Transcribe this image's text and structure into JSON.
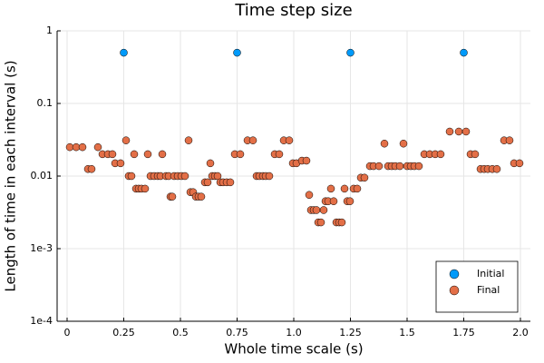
{
  "chart_data": {
    "type": "scatter",
    "title": "Time step size",
    "x_label": "Whole time scale (s)",
    "y_label": "Length of time in each interval (s)",
    "xlim": [
      -0.044,
      2.044
    ],
    "ylim": [
      0.0001,
      1
    ],
    "log_y": true,
    "grid": true,
    "legend": "bottom right",
    "xticks": [
      0,
      0.25,
      0.5,
      0.75,
      {
        "value": 1,
        "label": "1.0"
      },
      1.25,
      1.5,
      1.75,
      {
        "value": 2,
        "label": "2.0"
      }
    ],
    "yticks": [
      1,
      0.1,
      0.01,
      {
        "value": 0.001,
        "label": "1e-3"
      },
      {
        "value": 0.0001,
        "label": "1e-4"
      }
    ],
    "series": [
      {
        "name": "Initial",
        "color": "#009afa",
        "x": [
          0.25,
          0.75,
          1.25,
          1.75
        ],
        "values": [
          0.5,
          0.5,
          0.5,
          0.5
        ]
      },
      {
        "name": "Final",
        "color": "#e36f47",
        "x": [
          0.012,
          0.04,
          0.068,
          0.092,
          0.108,
          0.136,
          0.156,
          0.18,
          0.2,
          0.212,
          0.236,
          0.26,
          0.272,
          0.284,
          0.296,
          0.304,
          0.316,
          0.328,
          0.344,
          0.356,
          0.368,
          0.384,
          0.4,
          0.412,
          0.42,
          0.436,
          0.448,
          0.456,
          0.464,
          0.472,
          0.488,
          0.504,
          0.52,
          0.536,
          0.544,
          0.556,
          0.568,
          0.58,
          0.592,
          0.608,
          0.62,
          0.632,
          0.64,
          0.652,
          0.664,
          0.676,
          0.688,
          0.704,
          0.72,
          0.74,
          0.764,
          0.796,
          0.82,
          0.836,
          0.848,
          0.864,
          0.876,
          0.892,
          0.916,
          0.936,
          0.956,
          0.98,
          0.996,
          1.012,
          1.036,
          1.056,
          1.068,
          1.076,
          1.088,
          1.1,
          1.108,
          1.12,
          1.132,
          1.14,
          1.152,
          1.164,
          1.176,
          1.188,
          1.2,
          1.212,
          1.224,
          1.236,
          1.248,
          1.264,
          1.28,
          1.296,
          1.312,
          1.336,
          1.352,
          1.376,
          1.4,
          1.416,
          1.432,
          1.448,
          1.468,
          1.484,
          1.5,
          1.516,
          1.532,
          1.552,
          1.576,
          1.6,
          1.624,
          1.648,
          1.688,
          1.728,
          1.76,
          1.78,
          1.8,
          1.824,
          1.84,
          1.856,
          1.876,
          1.896,
          1.928,
          1.952,
          1.972,
          1.996
        ],
        "values": [
          0.025,
          0.025,
          0.025,
          0.0125,
          0.0125,
          0.025,
          0.02,
          0.02,
          0.02,
          0.015,
          0.015,
          0.031,
          0.01,
          0.01,
          0.02,
          0.0067,
          0.0067,
          0.0067,
          0.0067,
          0.02,
          0.01,
          0.01,
          0.01,
          0.01,
          0.02,
          0.01,
          0.01,
          0.0052,
          0.0052,
          0.01,
          0.01,
          0.01,
          0.01,
          0.031,
          0.006,
          0.006,
          0.0052,
          0.0052,
          0.0052,
          0.0082,
          0.0082,
          0.015,
          0.01,
          0.01,
          0.01,
          0.0082,
          0.0082,
          0.0082,
          0.0082,
          0.02,
          0.02,
          0.031,
          0.031,
          0.01,
          0.01,
          0.01,
          0.01,
          0.01,
          0.02,
          0.02,
          0.031,
          0.031,
          0.015,
          0.015,
          0.0163,
          0.0163,
          0.0055,
          0.0034,
          0.0034,
          0.0034,
          0.0023,
          0.0023,
          0.0034,
          0.0045,
          0.0045,
          0.0067,
          0.0045,
          0.0023,
          0.0023,
          0.0023,
          0.0067,
          0.0045,
          0.0045,
          0.0067,
          0.0067,
          0.0095,
          0.0095,
          0.0137,
          0.0137,
          0.0137,
          0.028,
          0.0137,
          0.0137,
          0.0137,
          0.0137,
          0.028,
          0.0137,
          0.0137,
          0.0137,
          0.0137,
          0.02,
          0.02,
          0.02,
          0.02,
          0.041,
          0.041,
          0.041,
          0.02,
          0.02,
          0.0125,
          0.0125,
          0.0125,
          0.0125,
          0.0125,
          0.031,
          0.031,
          0.015,
          0.015
        ]
      }
    ]
  }
}
